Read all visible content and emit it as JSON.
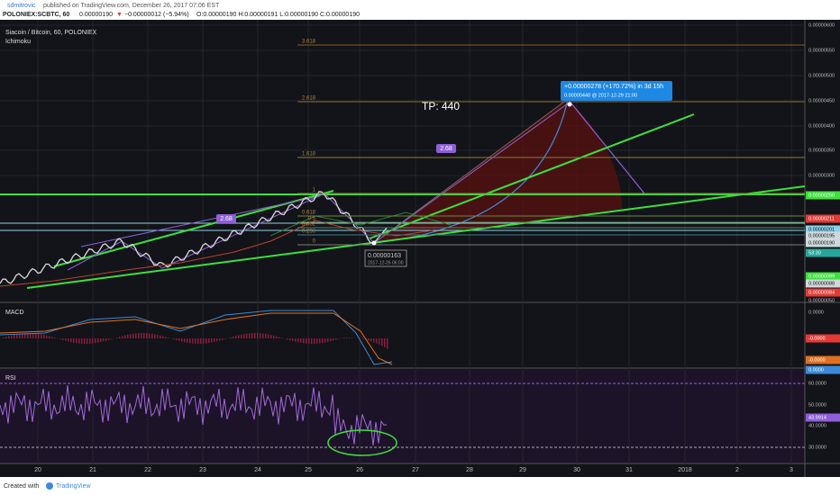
{
  "header": {
    "author": "sdmitrovic",
    "published": "published on TradingView.com, December 26, 2017 07:06 EST",
    "symbol": "POLONIEX:SCBTC, 60",
    "last": "0.00000190",
    "arrow": "▼",
    "change": "−0.00000012 (−5.94%)",
    "ohlc": "O:0.00000190 H:0.00000191 L:0.00000190 C:0.00000190"
  },
  "main_pane": {
    "title": "Siacoin / Bitcoin, 60, POLONIEX",
    "indicator": "Ichimoku",
    "fib_labels": [
      "3.618",
      "2.618",
      "1.618",
      "1",
      "0.618",
      "0.5",
      "0.382",
      "0.236",
      "0"
    ],
    "target": "TP: 440",
    "ratio_labels": [
      "2.68",
      "2.68"
    ],
    "tooltip": {
      "line1": "+0.00000278 (+170.72%) in 3d 15h",
      "line2": "0.00000440 @ 2017-12-29 21:00"
    },
    "low_label": {
      "price": "0.00000163",
      "time": "2017-12-26 06:00"
    },
    "price_axis": [
      "0.00000600",
      "0.00000550",
      "0.00000500",
      "0.00000450",
      "0.00000400",
      "0.00000350",
      "0.00000300",
      "0.00000250",
      "0.00000211",
      "0.00000201",
      "0.00000195",
      "0.00000190",
      "53:30",
      "0.00000099",
      "0.00000088",
      "0.00000084",
      "0.00000050"
    ]
  },
  "macd_pane": {
    "title": "MACD",
    "axis": [
      "0.0000",
      "-0.0000",
      "-0.0000",
      "0.0000"
    ]
  },
  "rsi_pane": {
    "title": "RSI",
    "axis": [
      "60.0000",
      "50.0000",
      "43.9914",
      "40.0000",
      "30.0000"
    ]
  },
  "time_axis": [
    "20",
    "21",
    "22",
    "23",
    "24",
    "25",
    "26",
    "27",
    "28",
    "29",
    "30",
    "31",
    "2018",
    "2",
    "3"
  ],
  "footer": {
    "created": "Created with",
    "brand": "TradingView"
  }
}
